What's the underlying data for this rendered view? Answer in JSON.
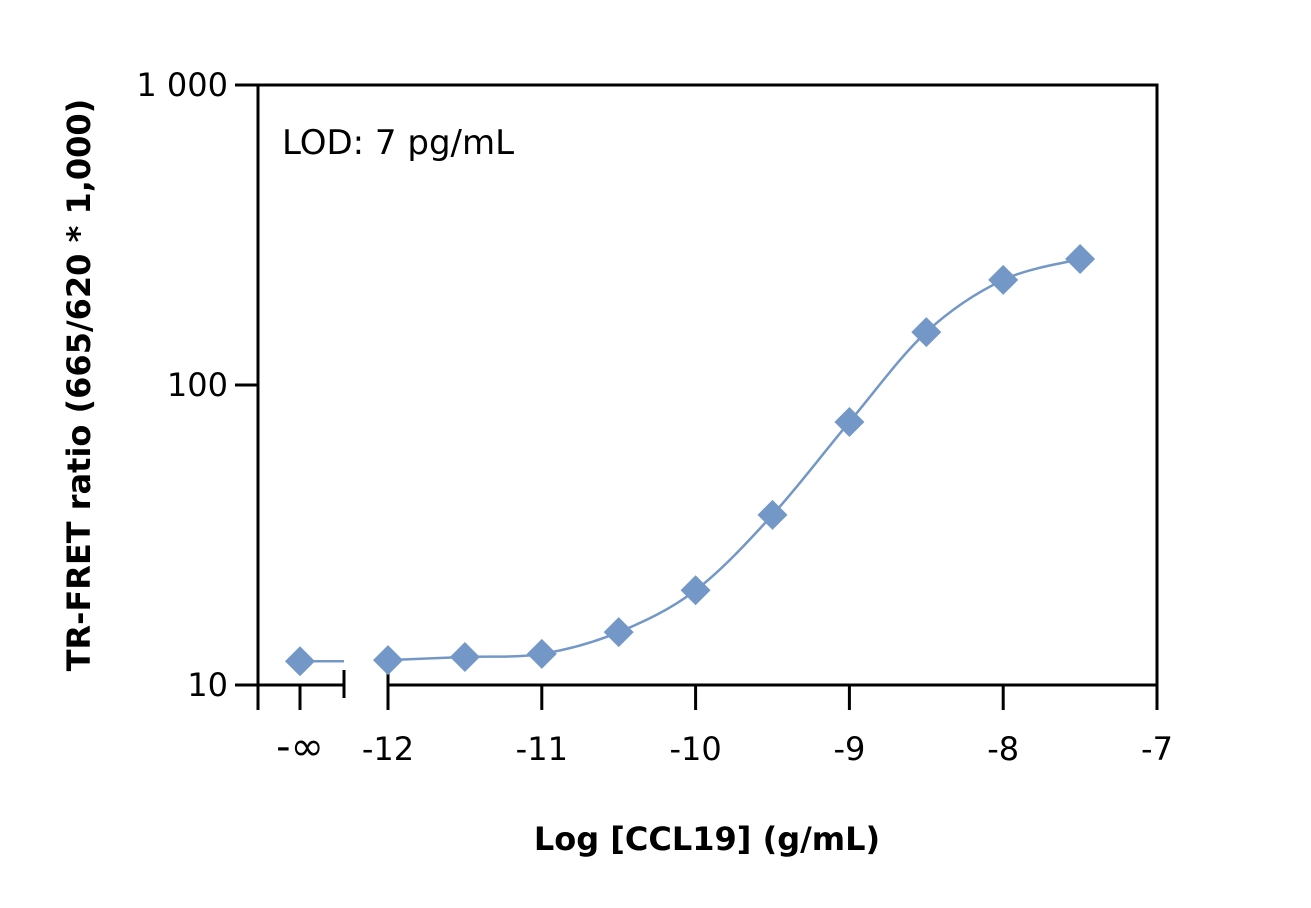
{
  "chart_data": {
    "type": "scatter",
    "title": "",
    "xlabel": "Log [CCL19] (g/mL)",
    "ylabel": "TR-FRET ratio (665/620 * 1,000)",
    "annotation": "LOD: 7 pg/mL",
    "yscale": "log",
    "ylim": [
      10,
      1000
    ],
    "xlim": [
      -12,
      -7
    ],
    "yticks": [
      {
        "v": 10,
        "label": "10"
      },
      {
        "v": 100,
        "label": "100"
      },
      {
        "v": 1000,
        "label": "1 000"
      }
    ],
    "xticks": [
      {
        "v": "-inf",
        "label": "-∞"
      },
      {
        "v": -12,
        "label": "-12"
      },
      {
        "v": -11,
        "label": "-11"
      },
      {
        "v": -10,
        "label": "-10"
      },
      {
        "v": -9,
        "label": "-9"
      },
      {
        "v": -8,
        "label": "-8"
      },
      {
        "v": -7,
        "label": "-7"
      }
    ],
    "grid": false,
    "marker": "diamond",
    "color": "#7398c7",
    "points": [
      {
        "x": "-inf",
        "y": 12.0
      },
      {
        "x": -12,
        "y": 12.1
      },
      {
        "x": -11.5,
        "y": 12.4
      },
      {
        "x": -11,
        "y": 12.7
      },
      {
        "x": -10.5,
        "y": 15.0
      },
      {
        "x": -10,
        "y": 20.7
      },
      {
        "x": -9.5,
        "y": 36.9
      },
      {
        "x": -9,
        "y": 75.3
      },
      {
        "x": -8.5,
        "y": 150
      },
      {
        "x": -8,
        "y": 224
      },
      {
        "x": -7.5,
        "y": 263
      }
    ]
  }
}
